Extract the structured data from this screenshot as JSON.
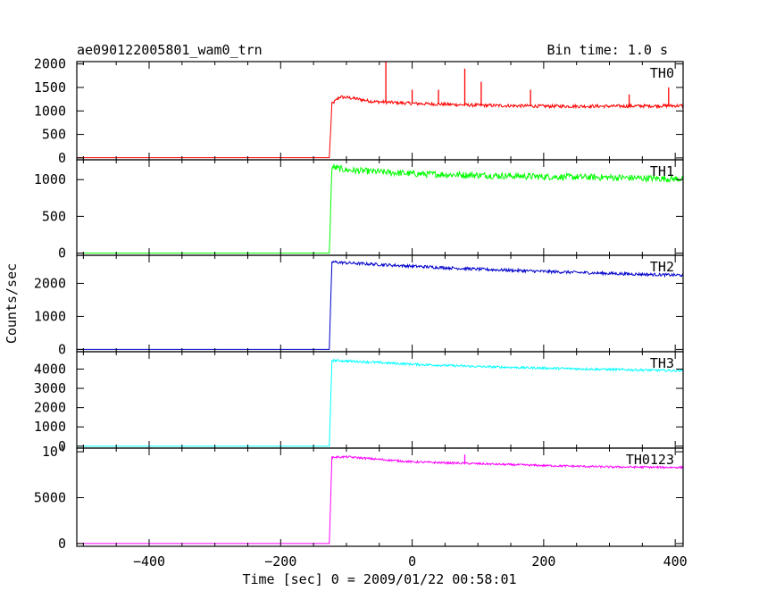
{
  "chart_data": {
    "type": "line",
    "title": "ae090122005801_wam0_trn",
    "subtitle": "Bin time: 1.0 s",
    "xlabel": "Time [sec] 0 = 2009/01/22 00:58:01",
    "ylabel": "Counts/sec",
    "xlim": [
      -510,
      412
    ],
    "x_ticks": [
      "−400",
      "−200",
      "0",
      "200",
      "400"
    ],
    "x_tick_values": [
      -400,
      -200,
      0,
      200,
      400
    ],
    "onset_x": -125,
    "panels": [
      {
        "name": "TH0",
        "color": "#ff0000",
        "ylim": [
          -40,
          2050
        ],
        "y_ticks": [
          "2000",
          "1500",
          "1000",
          "500",
          "0"
        ],
        "y_tick_values": [
          2000,
          1500,
          1000,
          500,
          0
        ],
        "points": [
          [
            -510,
            5
          ],
          [
            -126,
            5
          ],
          [
            -122,
            1150
          ],
          [
            -110,
            1300
          ],
          [
            -90,
            1270
          ],
          [
            -60,
            1200
          ],
          [
            0,
            1160
          ],
          [
            100,
            1120
          ],
          [
            200,
            1100
          ],
          [
            300,
            1100
          ],
          [
            400,
            1110
          ]
        ],
        "noise": 35,
        "spikes": [
          [
            -40,
            2050
          ],
          [
            0,
            1450
          ],
          [
            40,
            1450
          ],
          [
            80,
            1900
          ],
          [
            105,
            1620
          ],
          [
            180,
            1450
          ],
          [
            390,
            1500
          ],
          [
            330,
            1350
          ]
        ]
      },
      {
        "name": "TH1",
        "color": "#00ff00",
        "ylim": [
          -30,
          1270
        ],
        "y_ticks": [
          "1000",
          "500",
          "0"
        ],
        "y_tick_values": [
          1000,
          500,
          0
        ],
        "points": [
          [
            -510,
            0
          ],
          [
            -126,
            0
          ],
          [
            -122,
            1170
          ],
          [
            -100,
            1130
          ],
          [
            0,
            1080
          ],
          [
            100,
            1060
          ],
          [
            200,
            1040
          ],
          [
            300,
            1030
          ],
          [
            400,
            1010
          ]
        ],
        "noise": 45,
        "spikes": []
      },
      {
        "name": "TH2",
        "color": "#0000cc",
        "ylim": [
          -70,
          2850
        ],
        "y_ticks": [
          "2000",
          "1000",
          "0"
        ],
        "y_tick_values": [
          2000,
          1000,
          0
        ],
        "points": [
          [
            -510,
            0
          ],
          [
            -126,
            0
          ],
          [
            -122,
            2650
          ],
          [
            -100,
            2620
          ],
          [
            0,
            2520
          ],
          [
            100,
            2430
          ],
          [
            200,
            2360
          ],
          [
            300,
            2300
          ],
          [
            400,
            2250
          ]
        ],
        "noise": 45,
        "spikes": []
      },
      {
        "name": "TH3",
        "color": "#00ffff",
        "ylim": [
          -100,
          4900
        ],
        "y_ticks": [
          "4000",
          "3000",
          "2000",
          "1000",
          "0"
        ],
        "y_tick_values": [
          4000,
          3000,
          2000,
          1000,
          0
        ],
        "points": [
          [
            -510,
            0
          ],
          [
            -126,
            0
          ],
          [
            -122,
            4450
          ],
          [
            -100,
            4420
          ],
          [
            0,
            4250
          ],
          [
            100,
            4130
          ],
          [
            200,
            4050
          ],
          [
            300,
            3980
          ],
          [
            400,
            3920
          ]
        ],
        "noise": 60,
        "spikes": []
      },
      {
        "name": "TH0123",
        "color": "#ff00ff",
        "ylim": [
          -300,
          10400
        ],
        "y_ticks": [
          "10⁴",
          "5000",
          "0"
        ],
        "y_tick_values": [
          10000,
          5000,
          0
        ],
        "points": [
          [
            -510,
            0
          ],
          [
            -126,
            0
          ],
          [
            -122,
            9400
          ],
          [
            -100,
            9450
          ],
          [
            0,
            8900
          ],
          [
            100,
            8700
          ],
          [
            200,
            8500
          ],
          [
            300,
            8350
          ],
          [
            400,
            8300
          ]
        ],
        "noise": 110,
        "spikes": [
          [
            80,
            9700
          ]
        ]
      }
    ]
  }
}
